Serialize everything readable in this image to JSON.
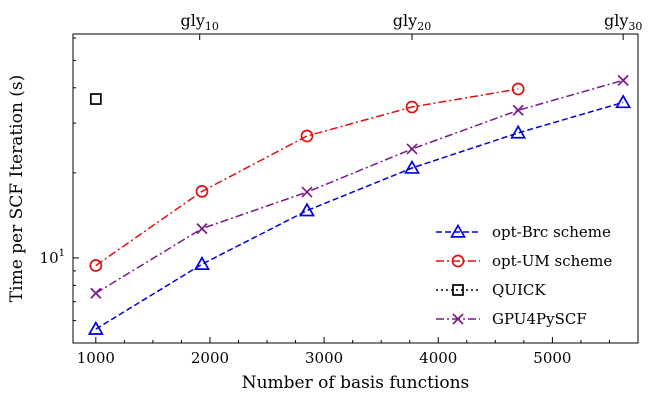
{
  "chart_data": {
    "type": "line",
    "xlabel": "Number of basis functions",
    "ylabel": "Time per SCF Iteration (s)",
    "xlim": [
      800,
      5750
    ],
    "ylim": [
      5,
      62
    ],
    "yscale": "log",
    "x_ticks": [
      1000,
      2000,
      3000,
      4000,
      5000
    ],
    "x_tick_labels": [
      "1000",
      "2000",
      "3000",
      "4000",
      "5000"
    ],
    "y_ticks": [
      10
    ],
    "y_tick_label_base": "10",
    "y_tick_label_exp": "1",
    "top_axis": {
      "ticks": [
        1910,
        3770,
        5620
      ],
      "labels": [
        {
          "base": "gly",
          "sub": "10"
        },
        {
          "base": "gly",
          "sub": "20"
        },
        {
          "base": "gly",
          "sub": "30"
        }
      ]
    },
    "legend_position": "lower-right",
    "series": [
      {
        "name": "opt-Brc scheme",
        "color": "#0000dd",
        "marker": "triangle-open",
        "linestyle": "dashed",
        "x": [
          1000,
          1930,
          2850,
          3770,
          4700,
          5620
        ],
        "y": [
          5.6,
          9.5,
          14.7,
          20.8,
          27.7,
          35.5
        ]
      },
      {
        "name": "opt-UM scheme",
        "color": "#e01010",
        "marker": "circle-open",
        "linestyle": "dashdot",
        "x": [
          1000,
          1930,
          2850,
          3770,
          4700
        ],
        "y": [
          9.4,
          17.2,
          27.0,
          34.2,
          39.6
        ]
      },
      {
        "name": "QUICK",
        "color": "#000000",
        "marker": "square-open",
        "linestyle": "dotted",
        "x": [
          1000
        ],
        "y": [
          36.5
        ]
      },
      {
        "name": "GPU4PySCF",
        "color": "#7a1a8a",
        "marker": "x",
        "linestyle": "dashdot",
        "x": [
          1000,
          1930,
          2850,
          3770,
          4700,
          5620
        ],
        "y": [
          7.5,
          12.7,
          17.1,
          24.3,
          33.3,
          42.5
        ]
      }
    ]
  }
}
